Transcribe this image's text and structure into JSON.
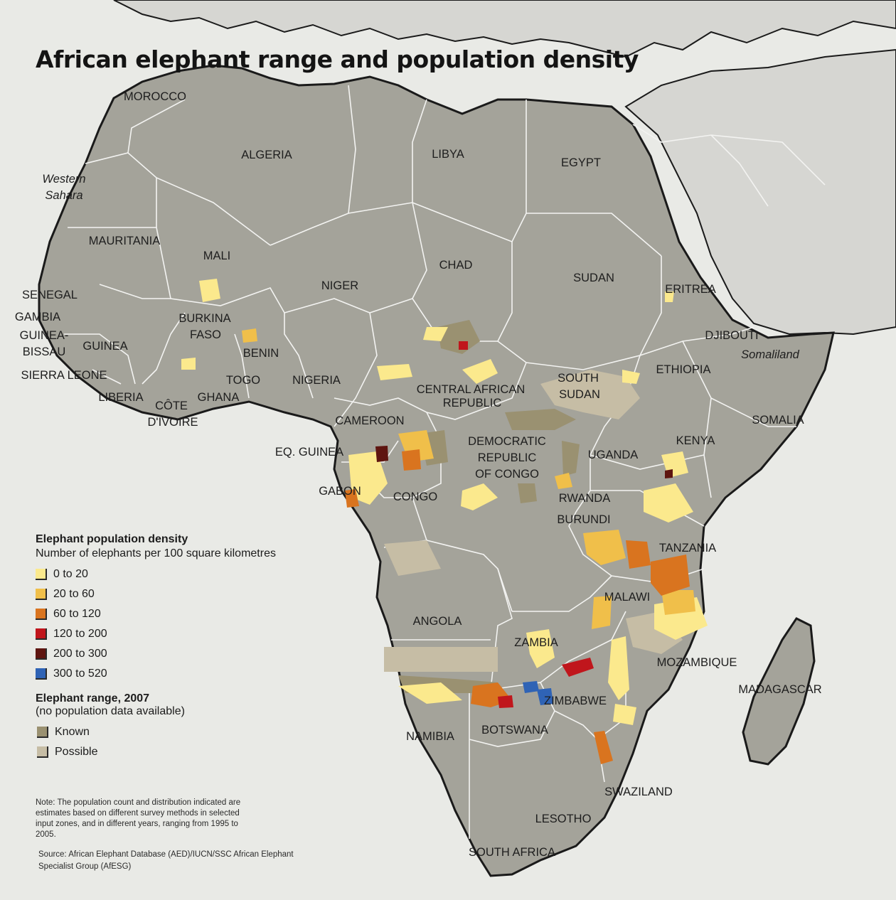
{
  "title": "African elephant range and population density",
  "countries": [
    "MOROCCO",
    "ALGERIA",
    "LIBYA",
    "EGYPT",
    "Western Sahara",
    "MAURITANIA",
    "MALI",
    "CHAD",
    "NIGER",
    "SUDAN",
    "ERITREA",
    "SENEGAL",
    "GAMBIA",
    "GUINEA-BISSAU",
    "GUINEA",
    "BURKINA FASO",
    "BENIN",
    "DJIBOUTI",
    "Somaliland",
    "SIERRA LEONE",
    "TOGO",
    "NIGERIA",
    "SOUTH SUDAN",
    "ETHIOPIA",
    "LIBERIA",
    "CÔTE D'IVOIRE",
    "GHANA",
    "CENTRAL AFRICAN REPUBLIC",
    "CAMEROON",
    "SOMALIA",
    "EQ. GUINEA",
    "DEMOCRATIC REPUBLIC OF CONGO",
    "UGANDA",
    "KENYA",
    "GABON",
    "CONGO",
    "RWANDA",
    "BURUNDI",
    "TANZANIA",
    "MALAWI",
    "ANGOLA",
    "ZAMBIA",
    "MOZAMBIQUE",
    "MADAGASCAR",
    "ZIMBABWE",
    "NAMIBIA",
    "BOTSWANA",
    "SWAZILAND",
    "LESOTHO",
    "SOUTH AFRICA"
  ],
  "labels": {
    "morocco": "MOROCCO",
    "algeria": "ALGERIA",
    "libya": "LIBYA",
    "egypt": "EGYPT",
    "western_sahara_1": "Western",
    "western_sahara_2": "Sahara",
    "mauritania": "MAURITANIA",
    "mali": "MALI",
    "chad": "CHAD",
    "niger": "NIGER",
    "sudan": "SUDAN",
    "eritrea": "ERITREA",
    "senegal": "SENEGAL",
    "gambia": "GAMBIA",
    "guinea_bissau_1": "GUINEA-",
    "guinea_bissau_2": "BISSAU",
    "guinea": "GUINEA",
    "burkina_1": "BURKINA",
    "burkina_2": "FASO",
    "benin": "BENIN",
    "djibouti": "DJIBOUTI",
    "somaliland": "Somaliland",
    "sierra_leone": "SIERRA LEONE",
    "togo": "TOGO",
    "nigeria": "NIGERIA",
    "south_sudan_1": "SOUTH",
    "south_sudan_2": "SUDAN",
    "ethiopia": "ETHIOPIA",
    "liberia": "LIBERIA",
    "cote_1": "CÔTE",
    "cote_2": "D'IVOIRE",
    "ghana": "GHANA",
    "car_1": "CENTRAL AFRICAN",
    "car_2": "REPUBLIC",
    "cameroon": "CAMEROON",
    "somalia": "SOMALIA",
    "eq_guinea": "EQ. GUINEA",
    "drc_1": "DEMOCRATIC",
    "drc_2": "REPUBLIC",
    "drc_3": "OF CONGO",
    "uganda": "UGANDA",
    "kenya": "KENYA",
    "gabon": "GABON",
    "congo": "CONGO",
    "rwanda": "RWANDA",
    "burundi": "BURUNDI",
    "tanzania": "TANZANIA",
    "malawi": "MALAWI",
    "angola": "ANGOLA",
    "zambia": "ZAMBIA",
    "mozambique": "MOZAMBIQUE",
    "madagascar": "MADAGASCAR",
    "zimbabwe": "ZIMBABWE",
    "namibia": "NAMIBIA",
    "botswana": "BOTSWANA",
    "swaziland": "SWAZILAND",
    "lesotho": "LESOTHO",
    "south_africa": "SOUTH AFRICA"
  },
  "legend": {
    "density_title": "Elephant population density",
    "density_subtitle": "Number of elephants per 100 square kilometres",
    "density_classes": [
      {
        "label": "0 to 20",
        "color": "#fbe98d"
      },
      {
        "label": "20  to 60",
        "color": "#f0bf4a"
      },
      {
        "label": "60 to 120",
        "color": "#d9741f"
      },
      {
        "label": "120 to 200",
        "color": "#c0161c"
      },
      {
        "label": "200 to 300",
        "color": "#5e1510"
      },
      {
        "label": "300 to 520",
        "color": "#2f63b5"
      }
    ],
    "range_title": "Elephant range,  2007",
    "range_subtitle": "(no population data available)",
    "range_classes": [
      {
        "label": "Known",
        "color": "#9a9171"
      },
      {
        "label": "Possible",
        "color": "#c6bda5"
      }
    ]
  },
  "note": "Note: The population count and distribution indicated are estimates based on different survey methods in selected input zones, and in different years, ranging from 1995 to 2005.",
  "source": "Source: African Elephant Database (AED)/IUCN/SSC African Elephant Specialist Group (AfESG)",
  "colors": {
    "sea": "#e9eae6",
    "land": "#a4a39a",
    "other_land": "#d6d6d2",
    "borders": "#f3f3f1",
    "coast": "#1a1a1a"
  }
}
